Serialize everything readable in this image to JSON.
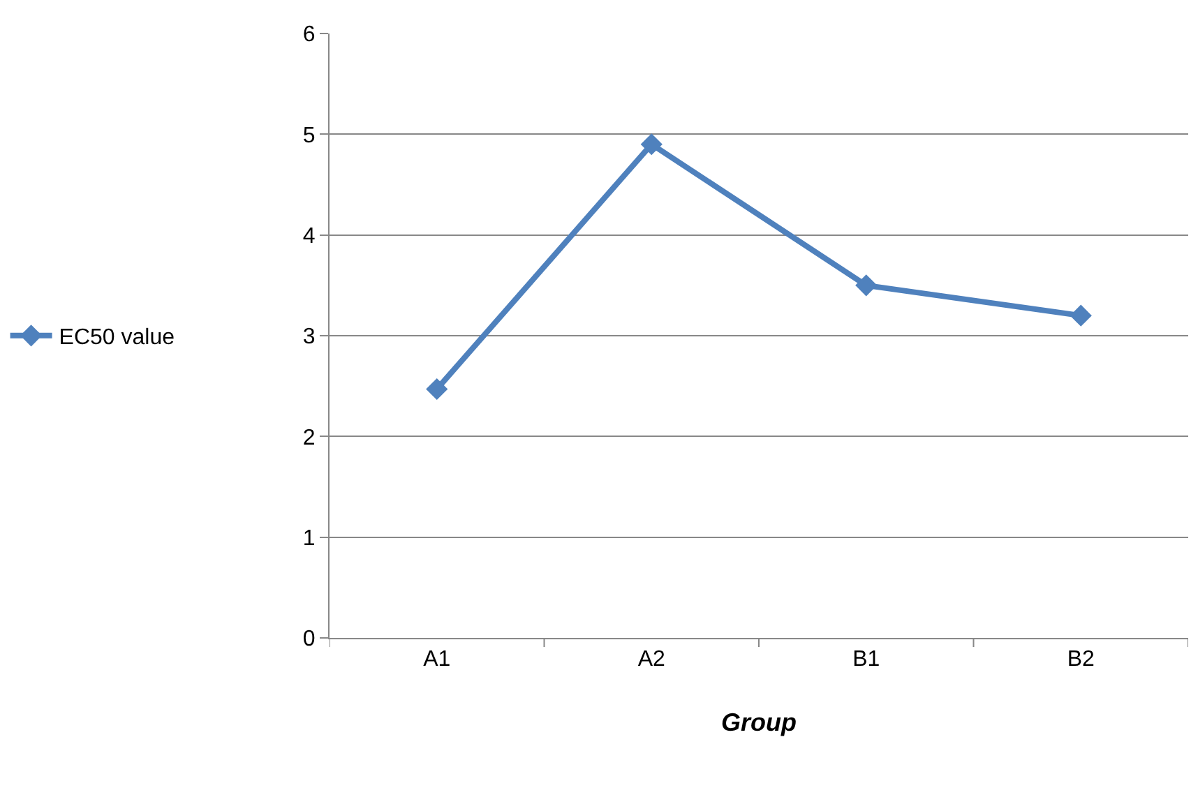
{
  "chart_data": {
    "type": "line",
    "xlabel": "Group",
    "categories": [
      "A1",
      "A2",
      "B1",
      "B2"
    ],
    "series": [
      {
        "name": "EC50 value",
        "color": "#4f81bd",
        "values": [
          2.47,
          4.9,
          3.5,
          3.2
        ]
      }
    ],
    "ylim": [
      0,
      6
    ],
    "yticks": [
      0,
      1,
      2,
      3,
      4,
      5,
      6
    ],
    "grid": "y",
    "legend": "left",
    "marker": "diamond",
    "line_style": "solid"
  }
}
